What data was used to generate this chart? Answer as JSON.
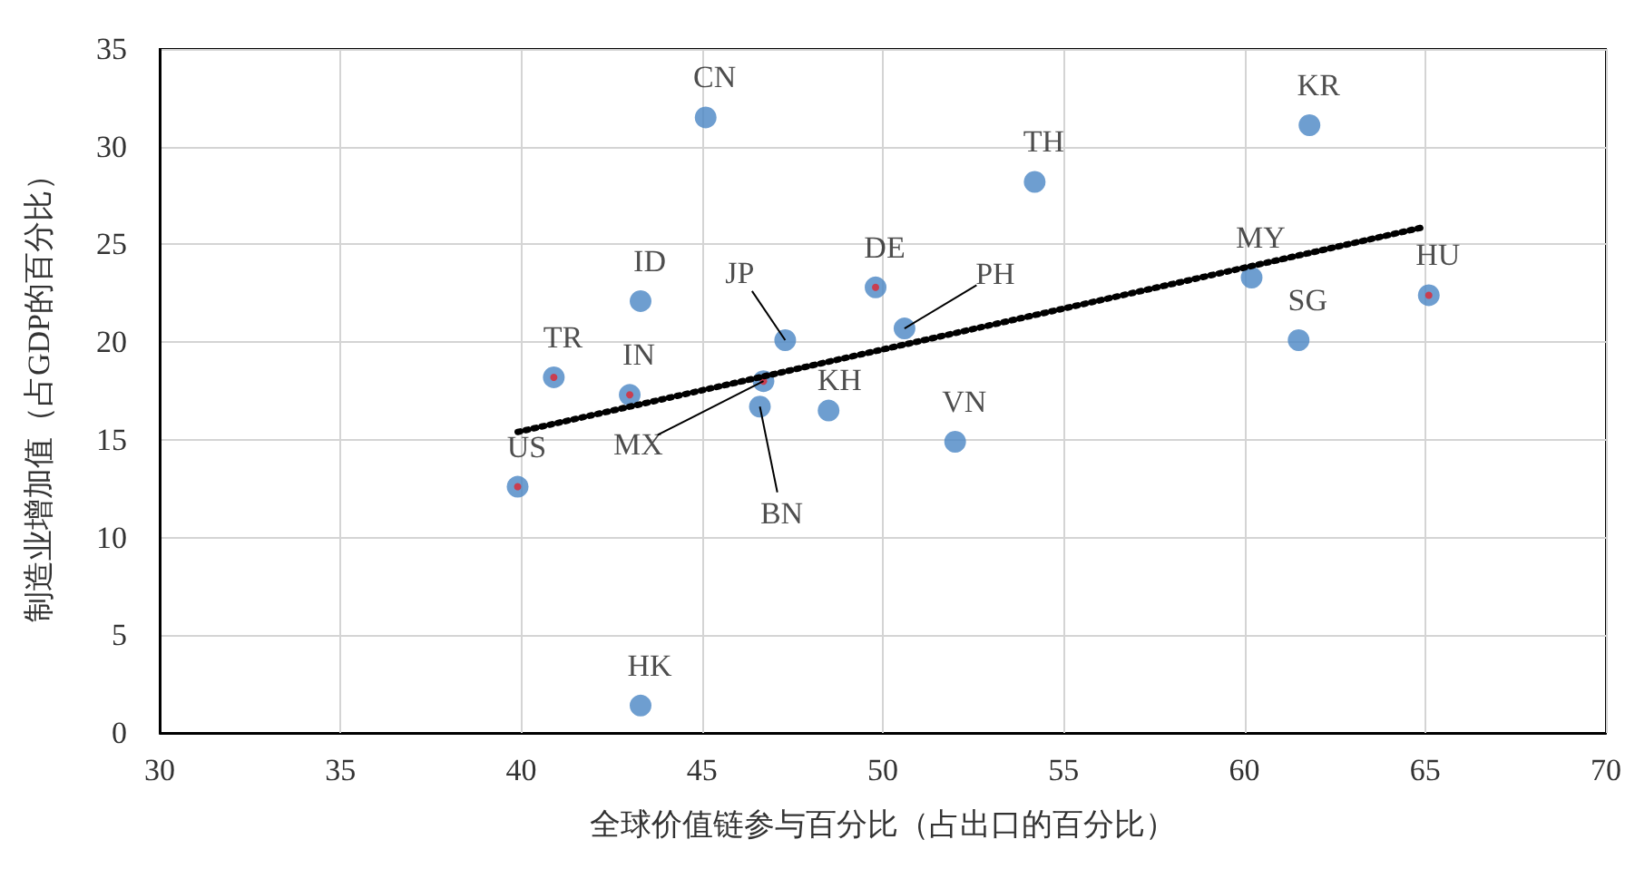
{
  "chart_data": {
    "type": "scatter",
    "xlabel": "全球价值链参与百分比（占出口的百分比）",
    "ylabel": "制造业增加值（占GDP的百分比）",
    "xlim": [
      30,
      70
    ],
    "xticks": [
      30,
      35,
      40,
      45,
      50,
      55,
      60,
      65,
      70
    ],
    "ylim": [
      0,
      35
    ],
    "yticks": [
      0,
      5,
      10,
      15,
      20,
      25,
      30,
      35
    ],
    "grid": true,
    "series": [
      {
        "color": "#4a86c4",
        "marker": "circle",
        "x": [
          45.1,
          61.8,
          54.2,
          43.3,
          49.8,
          50.6,
          47.3,
          60.2,
          61.5,
          65.1,
          40.9,
          43.0,
          46.7,
          46.6,
          48.5,
          52.0,
          39.9,
          43.3
        ],
        "values": [
          31.5,
          31.1,
          28.2,
          22.1,
          22.8,
          20.7,
          20.1,
          23.3,
          20.1,
          22.4,
          18.2,
          17.3,
          18.0,
          16.7,
          16.5,
          14.9,
          12.6,
          1.4
        ]
      },
      {
        "color": "#e0252f",
        "marker": "circle",
        "x": [
          39.9,
          40.9,
          43.0,
          46.7,
          49.8,
          65.1
        ],
        "values": [
          12.6,
          18.2,
          17.3,
          18.0,
          22.8,
          22.4
        ]
      },
      {
        "type": "line",
        "color": "#000000",
        "marker": "none",
        "line_style": "dotted",
        "x": [
          39.9,
          65.0
        ],
        "values": [
          15.4,
          25.9
        ]
      }
    ],
    "annotations": [
      {
        "text": "CN",
        "x": 45.1,
        "y": 31.5
      },
      {
        "text": "KR",
        "x": 61.8,
        "y": 31.1
      },
      {
        "text": "TH",
        "x": 54.2,
        "y": 28.2
      },
      {
        "text": "ID",
        "x": 43.3,
        "y": 22.1
      },
      {
        "text": "DE",
        "x": 49.8,
        "y": 22.8
      },
      {
        "text": "PH",
        "x": 50.6,
        "y": 20.7
      },
      {
        "text": "JP",
        "x": 47.3,
        "y": 20.1
      },
      {
        "text": "MY",
        "x": 60.2,
        "y": 23.3
      },
      {
        "text": "SG",
        "x": 61.5,
        "y": 20.1
      },
      {
        "text": "HU",
        "x": 65.1,
        "y": 22.4
      },
      {
        "text": "TR",
        "x": 40.9,
        "y": 18.2
      },
      {
        "text": "IN",
        "x": 43.0,
        "y": 17.3
      },
      {
        "text": "MX",
        "x": 46.7,
        "y": 18.0
      },
      {
        "text": "BN",
        "x": 46.6,
        "y": 16.7
      },
      {
        "text": "KH",
        "x": 48.5,
        "y": 16.5
      },
      {
        "text": "VN",
        "x": 52.0,
        "y": 14.9
      },
      {
        "text": "US",
        "x": 39.9,
        "y": 12.6
      },
      {
        "text": "HK",
        "x": 43.3,
        "y": 1.4
      }
    ]
  }
}
